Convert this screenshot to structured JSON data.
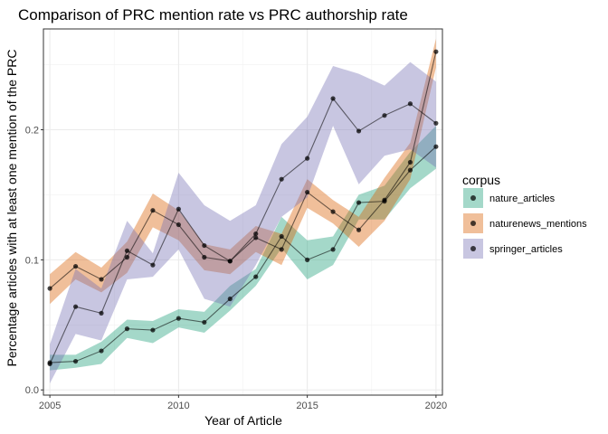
{
  "chart_data": {
    "type": "line",
    "title": "Comparison of PRC mention rate vs PRC authorship rate",
    "xlabel": "Year of Article",
    "ylabel": "Percentage articles with at least one mention of the PRC",
    "xlim": [
      2004.75,
      2020.25
    ],
    "ylim": [
      -0.004,
      0.2775
    ],
    "x_ticks": [
      2005,
      2010,
      2015,
      2020
    ],
    "x_tick_labels": [
      "2005",
      "2010",
      "2015",
      "2020"
    ],
    "y_ticks": [
      0,
      0.1,
      0.2
    ],
    "y_tick_labels": [
      "0.0",
      "0.1",
      "0.2"
    ],
    "grid": true,
    "legend": {
      "title": "corpus",
      "placement": "right"
    },
    "x": [
      2005,
      2006,
      2007,
      2008,
      2009,
      2010,
      2011,
      2012,
      2013,
      2014,
      2015,
      2016,
      2017,
      2018,
      2019,
      2020
    ],
    "series": [
      {
        "name": "nature_articles",
        "color": "#1b9e77",
        "values": [
          0.021,
          0.022,
          0.03,
          0.047,
          0.046,
          0.055,
          0.052,
          0.07,
          0.087,
          0.118,
          0.1,
          0.108,
          0.144,
          0.145,
          0.169,
          0.187
        ],
        "lower": [
          0.015,
          0.017,
          0.02,
          0.04,
          0.036,
          0.048,
          0.044,
          0.061,
          0.08,
          0.109,
          0.085,
          0.096,
          0.131,
          0.131,
          0.155,
          0.17
        ],
        "upper": [
          0.027,
          0.027,
          0.037,
          0.054,
          0.053,
          0.062,
          0.06,
          0.08,
          0.093,
          0.133,
          0.115,
          0.118,
          0.15,
          0.157,
          0.183,
          0.203
        ]
      },
      {
        "name": "naturenews_mentions",
        "color": "#d95f02",
        "values": [
          0.078,
          0.095,
          0.085,
          0.102,
          0.138,
          0.127,
          0.102,
          0.099,
          0.117,
          0.108,
          0.152,
          0.137,
          0.123,
          0.146,
          0.175,
          0.26
        ],
        "lower": [
          0.066,
          0.085,
          0.075,
          0.09,
          0.125,
          0.115,
          0.092,
          0.089,
          0.106,
          0.096,
          0.14,
          0.128,
          0.11,
          0.13,
          0.162,
          0.248
        ],
        "upper": [
          0.089,
          0.106,
          0.094,
          0.114,
          0.151,
          0.138,
          0.112,
          0.108,
          0.126,
          0.12,
          0.162,
          0.146,
          0.133,
          0.163,
          0.19,
          0.27
        ]
      },
      {
        "name": "springer_articles",
        "color": "#7570b3",
        "values": [
          0.02,
          0.064,
          0.059,
          0.107,
          0.096,
          0.139,
          0.111,
          0.099,
          0.12,
          0.162,
          0.178,
          0.224,
          0.199,
          0.211,
          0.22,
          0.205
        ],
        "lower": [
          0.005,
          0.043,
          0.038,
          0.085,
          0.087,
          0.108,
          0.07,
          0.064,
          0.096,
          0.133,
          0.148,
          0.203,
          0.158,
          0.18,
          0.185,
          0.171
        ],
        "upper": [
          0.035,
          0.093,
          0.078,
          0.13,
          0.105,
          0.167,
          0.142,
          0.13,
          0.142,
          0.189,
          0.21,
          0.249,
          0.243,
          0.234,
          0.252,
          0.237
        ]
      }
    ]
  }
}
